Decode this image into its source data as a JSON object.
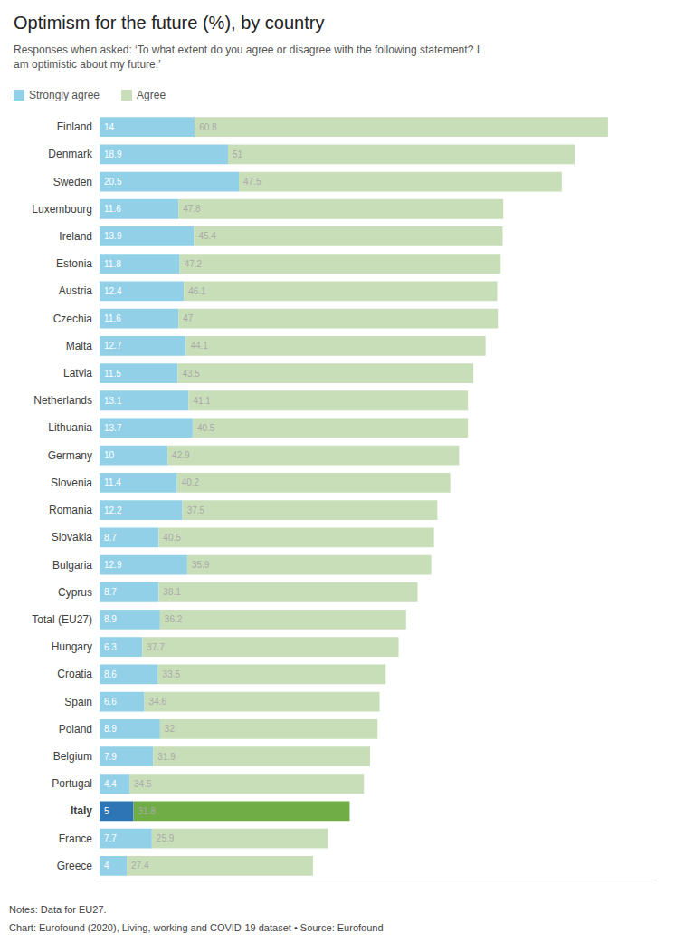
{
  "chart_data": {
    "type": "bar",
    "orientation": "horizontal",
    "stacked": true,
    "title": "Optimism for the future (%), by country",
    "subtitle": [
      "Responses when asked: ‘To what extent do you agree or disagree with the following statement? I",
      "am optimistic about my future.’"
    ],
    "annotations": [
      "Notes: Data for EU27.",
      "Chart: Eurofound (2020), Living, working and COVID-19 dataset • Source: Eurofound"
    ],
    "categories": [
      "Finland",
      "Denmark",
      "Sweden",
      "Luxembourg",
      "Ireland",
      "Estonia",
      "Austria",
      "Czechia",
      "Malta",
      "Latvia",
      "Netherlands",
      "Lithuania",
      "Germany",
      "Slovenia",
      "Romania",
      "Slovakia",
      "Bulgaria",
      "Cyprus",
      "Total (EU27)",
      "Hungary",
      "Croatia",
      "Spain",
      "Poland",
      "Belgium",
      "Portugal",
      "Italy",
      "France",
      "Greece"
    ],
    "series": [
      {
        "name": "Strongly agree",
        "color": "#92d0e8",
        "colors": [
          "#92d0e8",
          "#92d0e8",
          "#92d0e8",
          "#92d0e8",
          "#92d0e8",
          "#92d0e8",
          "#92d0e8",
          "#92d0e8",
          "#92d0e8",
          "#92d0e8",
          "#92d0e8",
          "#92d0e8",
          "#92d0e8",
          "#92d0e8",
          "#92d0e8",
          "#92d0e8",
          "#92d0e8",
          "#92d0e8",
          "#92d0e8",
          "#92d0e8",
          "#92d0e8",
          "#92d0e8",
          "#92d0e8",
          "#92d0e8",
          "#92d0e8",
          "#2e75b6",
          "#92d0e8",
          "#92d0e8"
        ],
        "values": [
          14,
          18.9,
          20.5,
          11.6,
          13.9,
          11.8,
          12.4,
          11.6,
          12.7,
          11.5,
          13.1,
          13.7,
          10,
          11.4,
          12.2,
          8.7,
          12.9,
          8.7,
          8.9,
          6.3,
          8.6,
          6.6,
          8.9,
          7.9,
          4.4,
          5,
          7.7,
          4
        ]
      },
      {
        "name": "Agree",
        "color": "#c8deb8",
        "colors": [
          "#c8deb8",
          "#c8deb8",
          "#c8deb8",
          "#c8deb8",
          "#c8deb8",
          "#c8deb8",
          "#c8deb8",
          "#c8deb8",
          "#c8deb8",
          "#c8deb8",
          "#c8deb8",
          "#c8deb8",
          "#c8deb8",
          "#c8deb8",
          "#c8deb8",
          "#c8deb8",
          "#c8deb8",
          "#c8deb8",
          "#c8deb8",
          "#c8deb8",
          "#c8deb8",
          "#c8deb8",
          "#c8deb8",
          "#c8deb8",
          "#c8deb8",
          "#70ad47",
          "#c8deb8",
          "#c8deb8"
        ],
        "values": [
          60.8,
          51,
          47.5,
          47.8,
          45.4,
          47.2,
          46.1,
          47,
          44.1,
          43.5,
          41.1,
          40.5,
          42.9,
          40.2,
          37.5,
          40.5,
          35.9,
          38.1,
          36.2,
          37.7,
          33.5,
          34.6,
          32,
          31.9,
          34.5,
          31.8,
          25.9,
          27.4
        ]
      }
    ],
    "xlim": [
      0,
      82
    ],
    "grid": false,
    "legend": "upper left",
    "data_labels": true,
    "tick_labels": "y"
  }
}
